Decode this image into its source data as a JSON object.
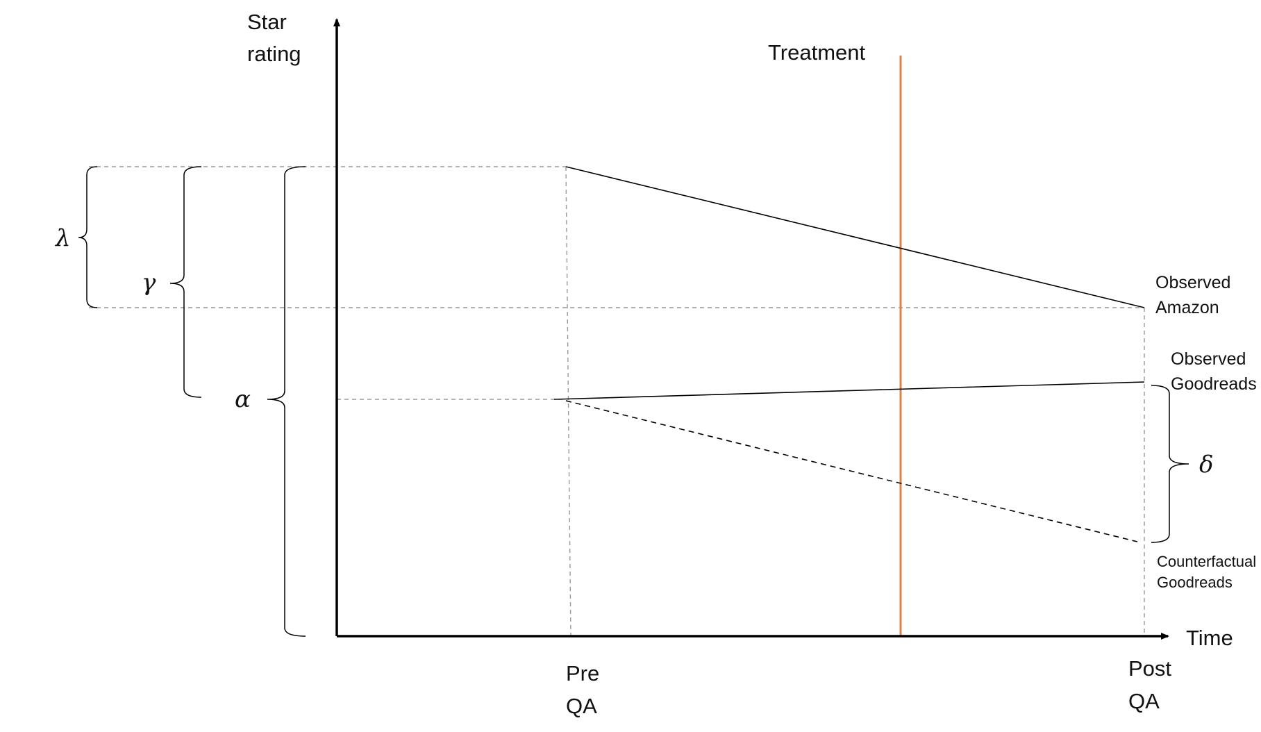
{
  "axes": {
    "y_label_line1": "Star",
    "y_label_line2": "rating",
    "x_label": "Time"
  },
  "ticks": {
    "pre_line1": "Pre",
    "pre_line2": "QA",
    "post_line1": "Post",
    "post_line2": "QA"
  },
  "treatment": {
    "label": "Treatment",
    "color": "#d98548"
  },
  "lines": {
    "observed_amazon_line1": "Observed",
    "observed_amazon_line2": "Amazon",
    "observed_goodreads_line1": "Observed",
    "observed_goodreads_line2": "Goodreads",
    "counterfactual_goodreads_line1": "Counterfactual",
    "counterfactual_goodreads_line2": "Goodreads"
  },
  "parameters": {
    "lambda": "λ",
    "gamma": "γ",
    "alpha": "α",
    "delta": "δ"
  },
  "colors": {
    "axis": "#000000",
    "guide": "#9a9a9a",
    "treatment": "#d98548"
  }
}
